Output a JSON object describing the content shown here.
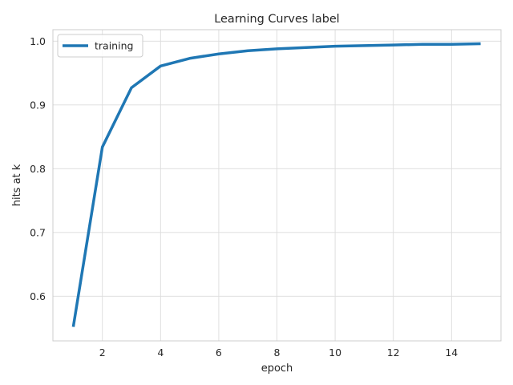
{
  "chart_data": {
    "type": "line",
    "title": "Learning Curves label",
    "xlabel": "epoch",
    "ylabel": "hits at k",
    "x": [
      1,
      2,
      3,
      4,
      5,
      6,
      7,
      8,
      9,
      10,
      11,
      12,
      13,
      14,
      15
    ],
    "series": [
      {
        "name": "training",
        "color": "#1f77b4",
        "values": [
          0.552,
          0.834,
          0.927,
          0.961,
          0.973,
          0.98,
          0.985,
          0.988,
          0.99,
          0.992,
          0.993,
          0.994,
          0.995,
          0.995,
          0.996
        ]
      }
    ],
    "xlim": [
      0.3,
      15.7
    ],
    "ylim": [
      0.53,
      1.018
    ],
    "xticks": [
      2,
      4,
      6,
      8,
      10,
      12,
      14
    ],
    "xtick_labels": [
      "2",
      "4",
      "6",
      "8",
      "10",
      "12",
      "14"
    ],
    "yticks": [
      0.6,
      0.7,
      0.8,
      0.9,
      1.0
    ],
    "ytick_labels": [
      "0.6",
      "0.7",
      "0.8",
      "0.9",
      "1.0"
    ],
    "grid": true,
    "legend_position": "top-left"
  }
}
